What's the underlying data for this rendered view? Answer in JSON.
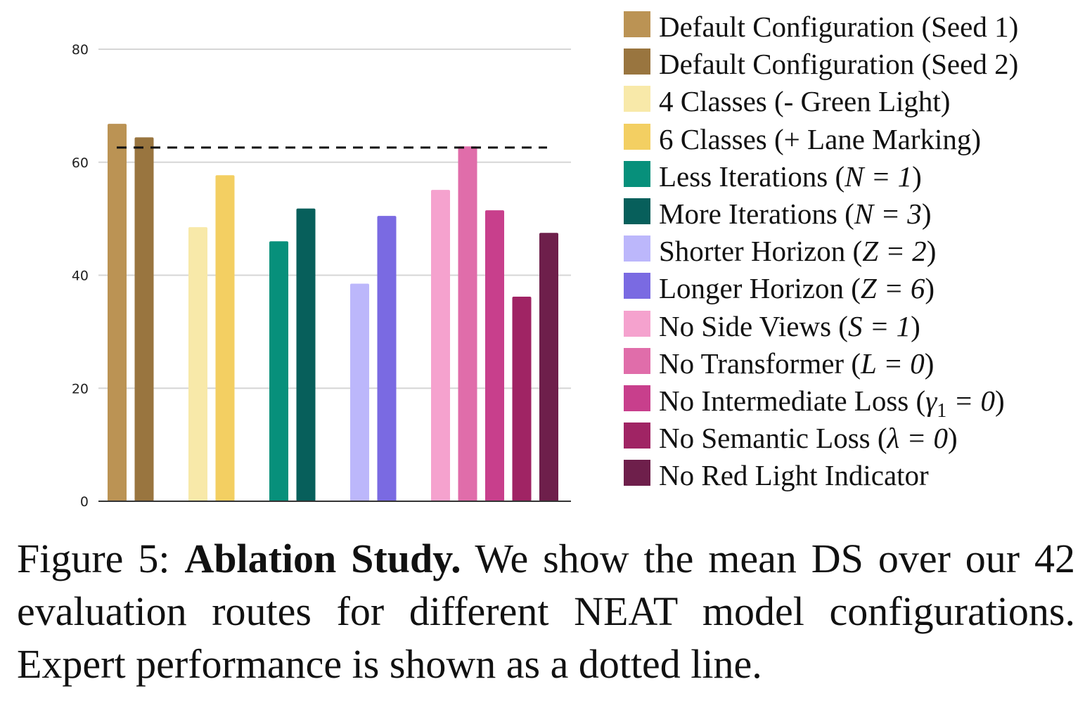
{
  "chart_data": {
    "type": "bar",
    "ylim": [
      0,
      80
    ],
    "yticks": [
      "0",
      "20",
      "40",
      "60",
      "80"
    ],
    "grid": true,
    "legend_position": "right",
    "reference_line": {
      "y": 62.6,
      "style": "dashed"
    },
    "groups": [
      {
        "series": [
          "Default Configuration (Seed 1)",
          "Default Configuration (Seed 2)"
        ]
      },
      {
        "series": [
          "4 Classes (- Green Light)",
          "6 Classes (+ Lane Marking)"
        ]
      },
      {
        "series": [
          "Less Iterations (N = 1)",
          "More Iterations (N = 3)"
        ]
      },
      {
        "series": [
          "Shorter Horizon (Z = 2)",
          "Longer Horizon (Z = 6)"
        ]
      },
      {
        "series": [
          "No Side Views (S = 1)",
          "No Transformer (L = 0)",
          "No Intermediate Loss (γ1 = 0)",
          "No Semantic Loss (λ = 0)",
          "No Red Light Indicator"
        ]
      }
    ],
    "series": [
      {
        "name": "Default Configuration (Seed 1)",
        "value": 66.8,
        "color": "#bb9354"
      },
      {
        "name": "Default Configuration (Seed 2)",
        "value": 64.4,
        "color": "#99753f"
      },
      {
        "name": "4 Classes (- Green Light)",
        "value": 48.5,
        "color": "#f8e9a9"
      },
      {
        "name": "6 Classes (+ Lane Marking)",
        "value": 57.7,
        "color": "#f3cf62"
      },
      {
        "name": "Less Iterations (N = 1)",
        "value": 46.0,
        "color": "#07907b"
      },
      {
        "name": "More Iterations (N = 3)",
        "value": 51.8,
        "color": "#075f5b"
      },
      {
        "name": "Shorter Horizon (Z = 2)",
        "value": 38.5,
        "color": "#bcb7fb"
      },
      {
        "name": "Longer Horizon (Z = 6)",
        "value": 50.5,
        "color": "#7a6ae2"
      },
      {
        "name": "No Side Views (S = 1)",
        "value": 55.1,
        "color": "#f5a2ce"
      },
      {
        "name": "No Transformer (L = 0)",
        "value": 62.8,
        "color": "#e06daa"
      },
      {
        "name": "No Intermediate Loss (γ1 = 0)",
        "value": 51.5,
        "color": "#c83f8c"
      },
      {
        "name": "No Semantic Loss (λ = 0)",
        "value": 36.2,
        "color": "#a02464"
      },
      {
        "name": "No Red Light Indicator",
        "value": 47.5,
        "color": "#6e1f4b"
      }
    ]
  },
  "caption": {
    "prefix": "Figure 5: ",
    "bold": "Ablation Study.",
    "text": " We show the mean DS over our 42 evaluation routes for different NEAT model configurations. Expert performance is shown as a dotted line."
  }
}
